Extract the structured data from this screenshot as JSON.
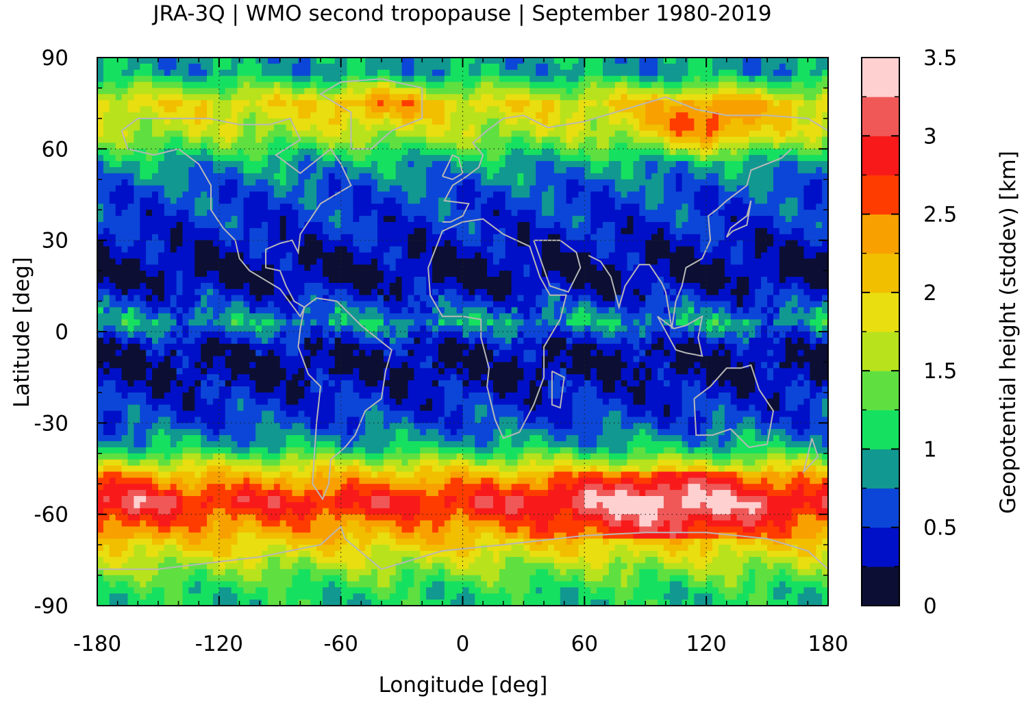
{
  "chart_data": {
    "type": "heatmap",
    "title": "JRA-3Q | WMO second tropopause | September 1980-2019",
    "xlabel": "Longitude [deg]",
    "ylabel": "Latitude [deg]",
    "colorbar_label": "Geopotential height (stddev) [km]",
    "xlim": [
      -180,
      180
    ],
    "ylim": [
      -90,
      90
    ],
    "x_ticks": [
      "-180",
      "-120",
      "-60",
      "0",
      "60",
      "120",
      "180"
    ],
    "y_ticks": [
      "90",
      "60",
      "30",
      "0",
      "-30",
      "-60",
      "-90"
    ],
    "x_tick_values": [
      -180,
      -120,
      -60,
      0,
      60,
      120,
      180
    ],
    "y_tick_values": [
      90,
      60,
      30,
      0,
      -30,
      -60,
      -90
    ],
    "colorbar_range": [
      0,
      3.5
    ],
    "colorbar_ticks": [
      "0",
      "0.5",
      "1",
      "1.5",
      "2",
      "2.5",
      "3",
      "3.5"
    ],
    "colorbar_tick_values": [
      0,
      0.5,
      1,
      1.5,
      2,
      2.5,
      3,
      3.5
    ],
    "colorbar_colors": [
      "#0c0f33",
      "#0010c8",
      "#0c46d8",
      "#119891",
      "#16e060",
      "#5fe040",
      "#b8e21c",
      "#e8de10",
      "#f2be00",
      "#f8a000",
      "#ff3c00",
      "#f81a1a",
      "#f05858",
      "#ffd0d0"
    ],
    "grid": "dotted",
    "coastline_color": "#b8b8b8",
    "latitude_bands": [
      {
        "lat": 85,
        "value": 0.9
      },
      {
        "lat": 75,
        "value": 1.9
      },
      {
        "lat": 65,
        "value": 1.6
      },
      {
        "lat": 55,
        "value": 0.9
      },
      {
        "lat": 45,
        "value": 0.6
      },
      {
        "lat": 35,
        "value": 0.5
      },
      {
        "lat": 25,
        "value": 0.3
      },
      {
        "lat": 18,
        "value": 0.2
      },
      {
        "lat": 10,
        "value": 0.5
      },
      {
        "lat": 3,
        "value": 0.9
      },
      {
        "lat": -5,
        "value": 0.3
      },
      {
        "lat": -12,
        "value": 0.2
      },
      {
        "lat": -20,
        "value": 0.4
      },
      {
        "lat": -30,
        "value": 0.6
      },
      {
        "lat": -38,
        "value": 1.0
      },
      {
        "lat": -45,
        "value": 1.9
      },
      {
        "lat": -50,
        "value": 2.4
      },
      {
        "lat": -56,
        "value": 2.9
      },
      {
        "lat": -62,
        "value": 2.5
      },
      {
        "lat": -70,
        "value": 2.0
      },
      {
        "lat": -78,
        "value": 1.5
      },
      {
        "lat": -86,
        "value": 1.1
      }
    ]
  }
}
